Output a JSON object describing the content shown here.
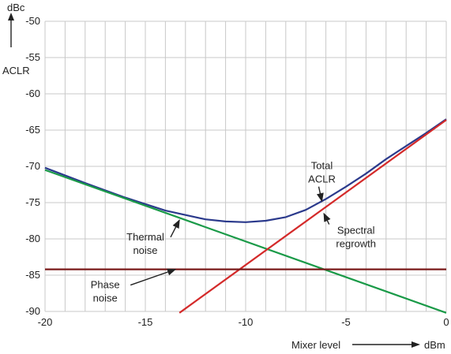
{
  "chart_data": {
    "type": "line",
    "title": "",
    "ylabel_unit": "dBc",
    "ylabel": "ACLR",
    "xlabel": "Mixer level",
    "xlabel_unit": "dBm",
    "xlim": [
      -20,
      0
    ],
    "ylim": [
      -90,
      -50
    ],
    "xticks": [
      -20,
      -15,
      -10,
      -5,
      0
    ],
    "yticks": [
      -50,
      -55,
      -60,
      -65,
      -70,
      -75,
      -80,
      -85,
      -90
    ],
    "grid": true,
    "series": [
      {
        "name": "Total ACLR",
        "label_lines": [
          "Total",
          "ACLR"
        ],
        "color": "#2b3a8c",
        "x": [
          -20,
          -18,
          -16,
          -14,
          -12,
          -11,
          -10,
          -9,
          -8,
          -7,
          -6,
          -5,
          -4,
          -3,
          -2,
          -1,
          0
        ],
        "y": [
          -70.2,
          -72.3,
          -74.3,
          -76.1,
          -77.3,
          -77.6,
          -77.7,
          -77.5,
          -77.0,
          -76.0,
          -74.5,
          -72.8,
          -71.0,
          -69.0,
          -67.2,
          -65.4,
          -63.5
        ]
      },
      {
        "name": "Thermal noise",
        "label_lines": [
          "Thermal",
          "noise"
        ],
        "color": "#1a9a48",
        "x": [
          -20,
          0
        ],
        "y": [
          -70.5,
          -90.2
        ]
      },
      {
        "name": "Spectral regrowth",
        "label_lines": [
          "Spectral",
          "regrowth"
        ],
        "color": "#d42a2a",
        "x": [
          -13.3,
          0
        ],
        "y": [
          -90.2,
          -63.6
        ]
      },
      {
        "name": "Phase noise",
        "label_lines": [
          "Phase",
          "noise"
        ],
        "color": "#7a1a1a",
        "x": [
          -20,
          0
        ],
        "y": [
          -84.2,
          -84.2
        ]
      }
    ],
    "annotations": [
      {
        "series": "Total ACLR",
        "text_pos": [
          -6.2,
          -70.4
        ],
        "target": [
          -6.2,
          -74.8
        ]
      },
      {
        "series": "Spectral regrowth",
        "text_pos": [
          -4.5,
          -79.3
        ],
        "target": [
          -6.1,
          -76.5
        ]
      },
      {
        "series": "Thermal noise",
        "text_pos": [
          -15.0,
          -80.2
        ],
        "target": [
          -13.3,
          -77.4
        ]
      },
      {
        "series": "Phase noise",
        "text_pos": [
          -17.0,
          -86.8
        ],
        "target": [
          -13.5,
          -84.2
        ]
      }
    ]
  }
}
